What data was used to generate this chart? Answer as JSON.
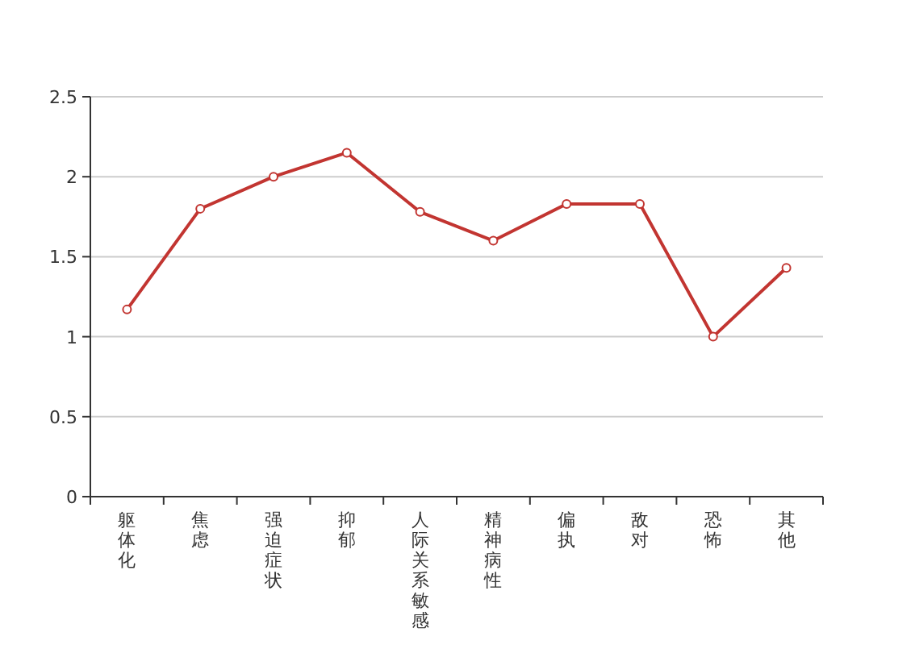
{
  "chart_data": {
    "type": "line",
    "categories": [
      "躯体化",
      "焦虑",
      "强迫症状",
      "抑郁",
      "人际关系敏感",
      "精神病性",
      "偏执",
      "敌对",
      "恐怖",
      "其他"
    ],
    "series": [
      {
        "color": "#c23531",
        "values": [
          1.17,
          1.8,
          2.0,
          2.15,
          1.78,
          1.6,
          1.83,
          1.83,
          1.0,
          1.43
        ]
      }
    ],
    "ylim": [
      0,
      2.5
    ],
    "yticks": [
      0,
      0.5,
      1,
      1.5,
      2,
      2.5
    ],
    "grid": "y",
    "marker": "circle",
    "line_style": "solid"
  }
}
